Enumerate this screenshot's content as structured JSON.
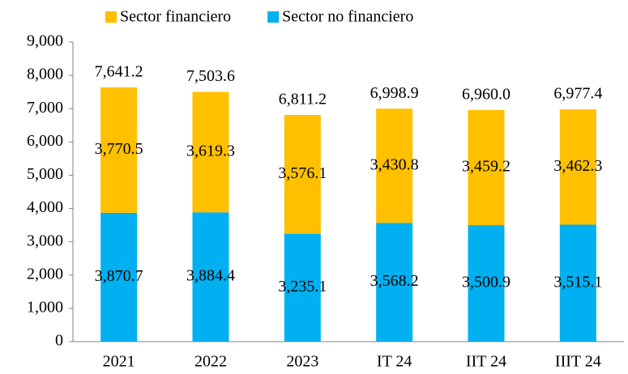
{
  "chart_data": {
    "type": "stacked_bar",
    "categories": [
      "2021",
      "2022",
      "2023",
      "IT 24",
      "IIT 24",
      "IIIT 24"
    ],
    "series": [
      {
        "name": "Sector financiero",
        "color": "#FFC000",
        "values": [
          3770.5,
          3619.3,
          3576.1,
          3430.8,
          3459.2,
          3462.3
        ],
        "value_labels": [
          "3,770.5",
          "3,619.3",
          "3,576.1",
          "3,430.8",
          "3,459.2",
          "3,462.3"
        ]
      },
      {
        "name": "Sector no financiero",
        "color": "#00B0F0",
        "values": [
          3870.7,
          3884.4,
          3235.1,
          3568.2,
          3500.9,
          3515.1
        ],
        "value_labels": [
          "3,870.7",
          "3,884.4",
          "3,235.1",
          "3,568.2",
          "3,500.9",
          "3,515.1"
        ]
      }
    ],
    "totals": [
      7641.2,
      7503.6,
      6811.2,
      6998.9,
      6960.0,
      6977.4
    ],
    "totals_labels": [
      "7,641.2",
      "7,503.6",
      "6,811.2",
      "6,998.9",
      "6,960.0",
      "6,977.4"
    ],
    "ylim": [
      0,
      9000
    ],
    "yticks": [
      0,
      {
        "value": 1000,
        "label": "1,000"
      },
      {
        "value": 2000,
        "label": "2,000"
      },
      {
        "value": 3000,
        "label": "3,000"
      },
      {
        "value": 4000,
        "label": "4,000"
      },
      {
        "value": 5000,
        "label": "5,000"
      },
      {
        "value": 6000,
        "label": "6,000"
      },
      {
        "value": 7000,
        "label": "7,000"
      },
      {
        "value": 8000,
        "label": "8,000"
      },
      {
        "value": 9000,
        "label": "9,000"
      }
    ],
    "grid": false,
    "legend": "top"
  }
}
